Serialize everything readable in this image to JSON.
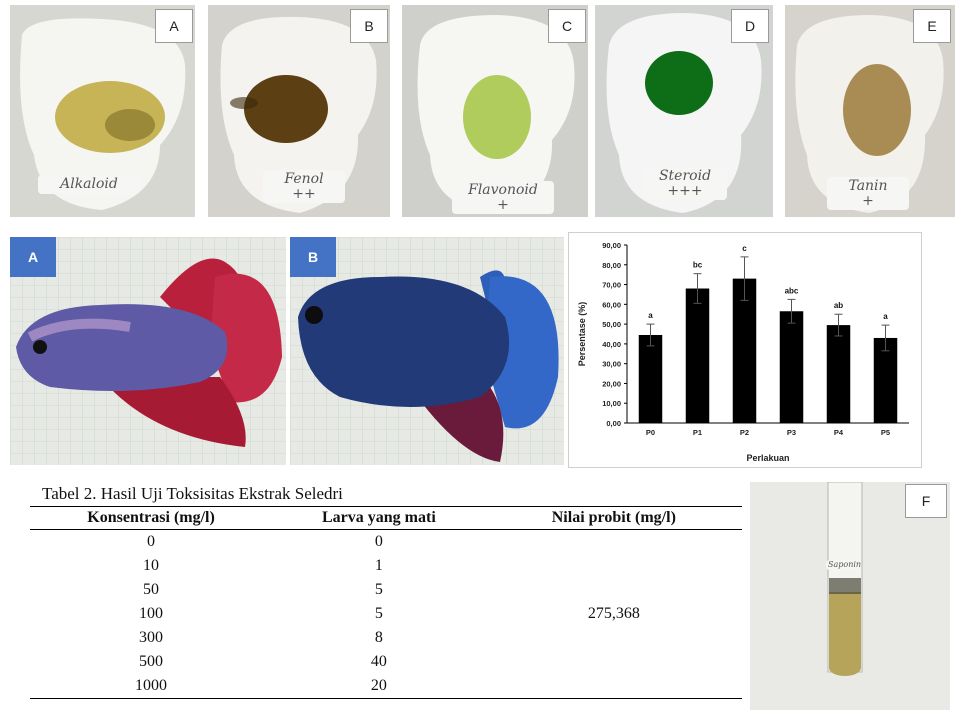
{
  "phyto_panels": [
    {
      "letter": "A",
      "label_line1": "Alkaloid",
      "label_line2": "",
      "bg": "#e9e9e6",
      "spot": "#b8a63a"
    },
    {
      "letter": "B",
      "label_line1": "Fenol",
      "label_line2": "++",
      "bg": "#e6e4df",
      "spot": "#5a3e14"
    },
    {
      "letter": "C",
      "label_line1": "Flavonoid",
      "label_line2": "+",
      "bg": "#e8e8e4",
      "spot": "#a6c44a"
    },
    {
      "letter": "D",
      "label_line1": "Steroid",
      "label_line2": "+++",
      "bg": "#e4e6e4",
      "spot": "#0f6e1a"
    },
    {
      "letter": "E",
      "label_line1": "Tanin",
      "label_line2": "+",
      "bg": "#e8e6e2",
      "spot": "#8a6a30"
    }
  ],
  "fish_panels": [
    {
      "letter": "A",
      "body": "#5a5aa0",
      "fin": "#b8203c"
    },
    {
      "letter": "B",
      "body": "#263a78",
      "fin": "#2e5fb8"
    }
  ],
  "chart_data": {
    "type": "bar",
    "categories": [
      "P0",
      "P1",
      "P2",
      "P3",
      "P4",
      "P5"
    ],
    "values": [
      44.5,
      68,
      73,
      56.5,
      49.5,
      43
    ],
    "errors": [
      5.5,
      7.5,
      11,
      6,
      5.5,
      6.5
    ],
    "significance": [
      "a",
      "bc",
      "c",
      "abc",
      "ab",
      "a"
    ],
    "xlabel": "Perlakuan",
    "ylabel": "Persentase (%)",
    "ylim": [
      0,
      90
    ],
    "yticks": [
      "0,00",
      "10,00",
      "20,00",
      "30,00",
      "40,00",
      "50,00",
      "60,00",
      "70,00",
      "80,00",
      "90,00"
    ],
    "bar_color": "#000000",
    "grid": false
  },
  "table": {
    "caption": "Tabel 2. Hasil Uji Toksisitas Ekstrak Seledri",
    "headers": [
      "Konsentrasi (mg/l)",
      "Larva yang mati",
      "Nilai probit (mg/l)"
    ],
    "rows": [
      {
        "konsentrasi": "0",
        "larva": "0"
      },
      {
        "konsentrasi": "10",
        "larva": "1"
      },
      {
        "konsentrasi": "50",
        "larva": "5"
      },
      {
        "konsentrasi": "100",
        "larva": "5"
      },
      {
        "konsentrasi": "300",
        "larva": "8"
      },
      {
        "konsentrasi": "500",
        "larva": "40"
      },
      {
        "konsentrasi": "1000",
        "larva": "20"
      }
    ],
    "probit": "275,368"
  },
  "tube_panel": {
    "letter": "F",
    "tube_label": "Saponin",
    "liquid": "#b5a45a"
  }
}
